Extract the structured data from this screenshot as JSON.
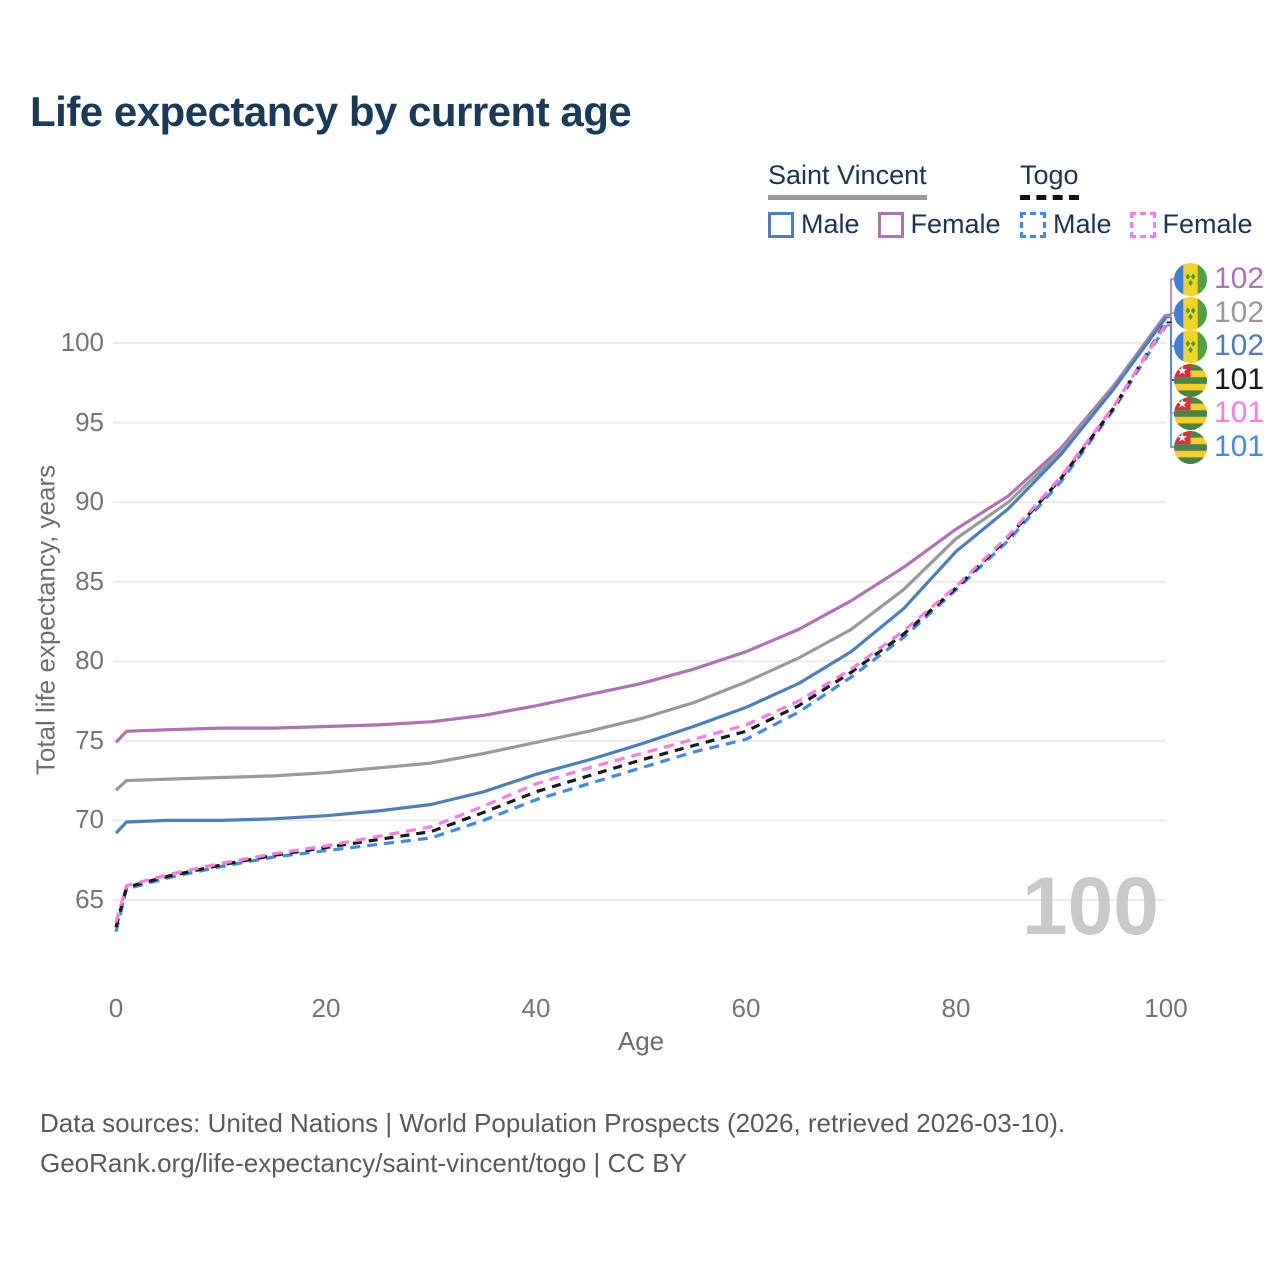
{
  "title": "Life expectancy by current age",
  "legend": {
    "groups": [
      {
        "name": "Saint Vincent",
        "line_style": "solid",
        "underline_color": "#9a9a9a",
        "items": [
          {
            "label": "Male",
            "color": "#4d7ec0",
            "dashed": false
          },
          {
            "label": "Female",
            "color": "#ad73b5",
            "dashed": false
          }
        ]
      },
      {
        "name": "Togo",
        "line_style": "dashed",
        "underline_color": "#111111",
        "items": [
          {
            "label": "Male",
            "color": "#4189f0",
            "dashed": true
          },
          {
            "label": "Female",
            "color": "#ff7ce0",
            "dashed": true
          }
        ]
      }
    ]
  },
  "chart_data": {
    "type": "line",
    "title": "Life expectancy by current age",
    "xlabel": "Age",
    "ylabel": "Total life expectancy, years",
    "xlim": [
      0,
      100
    ],
    "ylim": [
      63,
      103
    ],
    "xticks": [
      0,
      20,
      40,
      60,
      80,
      100
    ],
    "yticks": [
      65,
      70,
      75,
      80,
      85,
      90,
      95,
      100
    ],
    "grid": true,
    "legend_position": "top-right",
    "watermark": "100",
    "x": [
      0,
      1,
      5,
      10,
      15,
      20,
      25,
      30,
      35,
      40,
      45,
      50,
      55,
      60,
      65,
      70,
      75,
      80,
      85,
      90,
      95,
      100
    ],
    "series": [
      {
        "name": "Saint Vincent Female",
        "color": "#ad73b5",
        "dash": null,
        "values": [
          74.9,
          75.6,
          75.7,
          75.8,
          75.8,
          75.9,
          76.0,
          76.2,
          76.6,
          77.2,
          77.9,
          78.6,
          79.5,
          80.6,
          82.0,
          83.8,
          85.9,
          88.3,
          90.4,
          93.4,
          97.3,
          101.8
        ]
      },
      {
        "name": "Saint Vincent Both sexes",
        "color": "#9a9a9a",
        "dash": null,
        "values": [
          71.9,
          72.5,
          72.6,
          72.7,
          72.8,
          73.0,
          73.3,
          73.6,
          74.2,
          74.9,
          75.6,
          76.4,
          77.4,
          78.7,
          80.2,
          82.0,
          84.5,
          87.7,
          90.0,
          93.2,
          97.2,
          101.7
        ]
      },
      {
        "name": "Saint Vincent Male",
        "color": "#4d7ec0",
        "dash": null,
        "values": [
          69.2,
          69.9,
          70.0,
          70.0,
          70.1,
          70.3,
          70.6,
          71.0,
          71.8,
          72.9,
          73.8,
          74.8,
          75.9,
          77.1,
          78.6,
          80.6,
          83.3,
          86.9,
          89.6,
          93.0,
          97.1,
          101.6
        ]
      },
      {
        "name": "Togo Both sexes",
        "color": "#1a1a1a",
        "dash": [
          9,
          7
        ],
        "values": [
          63.3,
          65.8,
          66.5,
          67.2,
          67.8,
          68.3,
          68.8,
          69.3,
          70.5,
          71.8,
          72.8,
          73.8,
          74.7,
          75.6,
          77.2,
          79.3,
          81.7,
          84.6,
          87.8,
          91.5,
          95.9,
          101.3
        ]
      },
      {
        "name": "Togo Female",
        "color": "#ff7ce0",
        "dash": [
          10,
          7
        ],
        "values": [
          63.6,
          65.9,
          66.6,
          67.3,
          67.9,
          68.4,
          69.0,
          69.6,
          70.9,
          72.3,
          73.3,
          74.2,
          75.1,
          76.0,
          77.5,
          79.5,
          81.9,
          84.7,
          87.9,
          91.6,
          96.0,
          101.2
        ]
      },
      {
        "name": "Togo Male",
        "color": "#4189f0",
        "dash": [
          10,
          7
        ],
        "values": [
          63.0,
          65.7,
          66.4,
          67.1,
          67.7,
          68.1,
          68.5,
          68.9,
          70.0,
          71.3,
          72.3,
          73.3,
          74.3,
          75.1,
          76.8,
          79.0,
          81.5,
          84.5,
          87.6,
          91.3,
          95.8,
          101.1
        ]
      }
    ],
    "end_labels": [
      {
        "value": "102",
        "color": "#ad73b5",
        "flag": "saint-vincent"
      },
      {
        "value": "102",
        "color": "#9a9a9a",
        "flag": "saint-vincent"
      },
      {
        "value": "102",
        "color": "#4d7ec0",
        "flag": "saint-vincent"
      },
      {
        "value": "101",
        "color": "#1a1a1a",
        "flag": "togo"
      },
      {
        "value": "101",
        "color": "#ff7ce0",
        "flag": "togo"
      },
      {
        "value": "101",
        "color": "#4189f0",
        "flag": "togo"
      }
    ]
  },
  "footer": {
    "line1": "Data sources: United Nations | World Population Prospects (2026, retrieved 2026-03-10).",
    "line2": "GeoRank.org/life-expectancy/saint-vincent/togo | CC BY"
  }
}
